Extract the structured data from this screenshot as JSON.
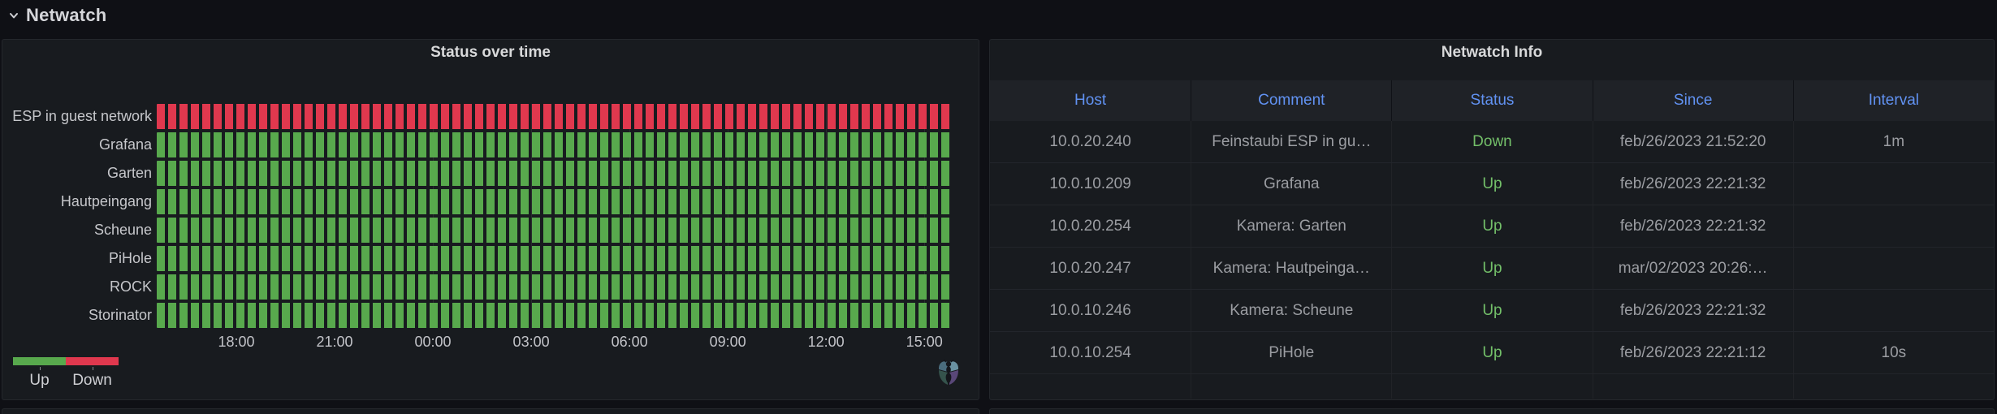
{
  "row_header": {
    "title": "Netwatch"
  },
  "status_panel": {
    "title": "Status over time"
  },
  "chart_data": {
    "type": "heatmap",
    "variant": "status-history",
    "title": "Status over time",
    "rows": [
      {
        "label": "ESP in guest network",
        "status": "Down"
      },
      {
        "label": "Grafana",
        "status": "Up"
      },
      {
        "label": "Garten",
        "status": "Up"
      },
      {
        "label": "Hautpeingang",
        "status": "Up"
      },
      {
        "label": "Scheune",
        "status": "Up"
      },
      {
        "label": "PiHole",
        "status": "Up"
      },
      {
        "label": "ROCK",
        "status": "Up"
      },
      {
        "label": "Storinator",
        "status": "Up"
      }
    ],
    "x_ticks": [
      "18:00",
      "21:00",
      "00:00",
      "03:00",
      "06:00",
      "09:00",
      "12:00",
      "15:00"
    ],
    "x_tick_first_frac": 0.1,
    "x_tick_step_frac": 0.1235,
    "cells_per_row": 70,
    "status_colors": {
      "Up": "#58a94d",
      "Down": "#e0384e"
    },
    "grid": true,
    "legend_position": "bottom-left",
    "legend": [
      {
        "label": "Up",
        "color": "#58a94d"
      },
      {
        "label": "Down",
        "color": "#e0384e"
      }
    ]
  },
  "table_panel": {
    "title": "Netwatch Info",
    "columns": [
      "Host",
      "Comment",
      "Status",
      "Since",
      "Interval"
    ],
    "rows": [
      {
        "host": "10.0.20.240",
        "comment": "Feinstaubi ESP in gu…",
        "status": "Down",
        "since": "feb/26/2023 21:52:20",
        "interval": "1m"
      },
      {
        "host": "10.0.10.209",
        "comment": "Grafana",
        "status": "Up",
        "since": "feb/26/2023 22:21:32",
        "interval": ""
      },
      {
        "host": "10.0.20.254",
        "comment": "Kamera: Garten",
        "status": "Up",
        "since": "feb/26/2023 22:21:32",
        "interval": ""
      },
      {
        "host": "10.0.20.247",
        "comment": "Kamera: Hautpeinga…",
        "status": "Up",
        "since": "mar/02/2023 20:26:…",
        "interval": ""
      },
      {
        "host": "10.0.10.246",
        "comment": "Kamera: Scheune",
        "status": "Up",
        "since": "feb/26/2023 22:21:32",
        "interval": ""
      },
      {
        "host": "10.0.10.254",
        "comment": "PiHole",
        "status": "Up",
        "since": "feb/26/2023 22:21:12",
        "interval": "10s"
      }
    ],
    "status_text_color": "#73bf69",
    "header_text_color": "#6192f2"
  }
}
